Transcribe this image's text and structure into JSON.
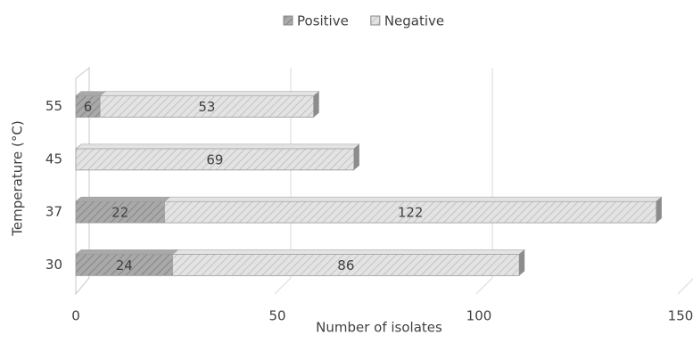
{
  "chart_data": {
    "type": "bar",
    "orientation": "horizontal",
    "stacked": true,
    "x_label": "Number of isolates",
    "y_label": "Temperature (°C)",
    "categories": [
      "30",
      "37",
      "45",
      "55"
    ],
    "series": [
      {
        "name": "Positive",
        "color": "#a9a9a9",
        "values": [
          24,
          22,
          null,
          6
        ]
      },
      {
        "name": "Negative",
        "color": "#e3e3e3",
        "values": [
          86,
          122,
          69,
          53
        ]
      }
    ],
    "xlim": [
      0,
      150
    ],
    "xticks": [
      0,
      50,
      100,
      150
    ],
    "grid": true,
    "legend": "top"
  }
}
